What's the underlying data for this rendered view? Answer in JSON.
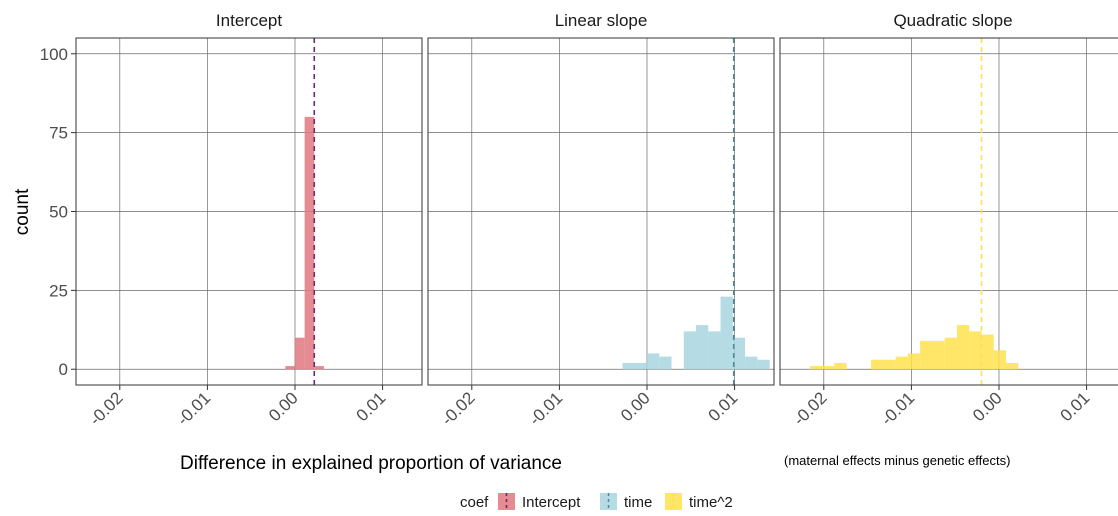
{
  "chart_data": {
    "type": "bar",
    "title": "",
    "xlabel": "Difference in explained proportion of variance",
    "xlabel_note": "(maternal effects minus genetic effects)",
    "ylabel": "count",
    "ylim": [
      -5,
      105
    ],
    "xlim": [
      -0.025,
      0.0145
    ],
    "grid": true,
    "y_ticks": [
      0,
      25,
      50,
      75,
      100
    ],
    "x_ticks": [
      -0.02,
      -0.01,
      0.0,
      0.01
    ],
    "x_tick_labels": [
      "-0.02",
      "-0.01",
      "0.00",
      "0.01"
    ],
    "legend": {
      "title": "coef",
      "position": "bottom",
      "entries": [
        {
          "label": "Intercept",
          "color": "#e0777f",
          "line_color": "#5a2a6a"
        },
        {
          "label": "time",
          "color": "#a8d5df",
          "line_color": "#4a8a9a"
        },
        {
          "label": "time^2",
          "color": "#ffe04d",
          "line_color": "#ffe04d"
        }
      ]
    },
    "facets": [
      {
        "title": "Intercept",
        "series": "Intercept",
        "fill": "#e0777f",
        "vline": 0.0022,
        "vline_color": "#6a2a7a",
        "bin_width": 0.0011,
        "bins": [
          {
            "x": -0.0011,
            "count": 1
          },
          {
            "x": 0.0,
            "count": 10
          },
          {
            "x": 0.0011,
            "count": 80
          },
          {
            "x": 0.0022,
            "count": 1
          }
        ]
      },
      {
        "title": "Linear slope",
        "series": "time",
        "fill": "#a8d5df",
        "vline": 0.0099,
        "vline_color": "#4a8a9a",
        "bin_width": 0.0014,
        "bins": [
          {
            "x": -0.0028,
            "count": 2
          },
          {
            "x": -0.0014,
            "count": 2
          },
          {
            "x": 0.0,
            "count": 5
          },
          {
            "x": 0.0014,
            "count": 4
          },
          {
            "x": 0.0042,
            "count": 12
          },
          {
            "x": 0.0056,
            "count": 14
          },
          {
            "x": 0.007,
            "count": 12
          },
          {
            "x": 0.0084,
            "count": 23
          },
          {
            "x": 0.0098,
            "count": 10
          },
          {
            "x": 0.0112,
            "count": 4
          },
          {
            "x": 0.0126,
            "count": 3
          }
        ]
      },
      {
        "title": "Quadratic slope",
        "series": "time^2",
        "fill": "#ffe04d",
        "vline": -0.002,
        "vline_color": "#ffe04d",
        "bin_width": 0.0014,
        "bins": [
          {
            "x": -0.0216,
            "count": 1
          },
          {
            "x": -0.0202,
            "count": 1
          },
          {
            "x": -0.0188,
            "count": 2
          },
          {
            "x": -0.0146,
            "count": 3
          },
          {
            "x": -0.0132,
            "count": 3
          },
          {
            "x": -0.0118,
            "count": 4
          },
          {
            "x": -0.0104,
            "count": 5
          },
          {
            "x": -0.009,
            "count": 9
          },
          {
            "x": -0.0076,
            "count": 9
          },
          {
            "x": -0.0062,
            "count": 10
          },
          {
            "x": -0.0048,
            "count": 14
          },
          {
            "x": -0.0034,
            "count": 12
          },
          {
            "x": -0.002,
            "count": 11
          },
          {
            "x": -0.0006,
            "count": 6
          },
          {
            "x": 0.0008,
            "count": 2
          }
        ]
      }
    ]
  }
}
